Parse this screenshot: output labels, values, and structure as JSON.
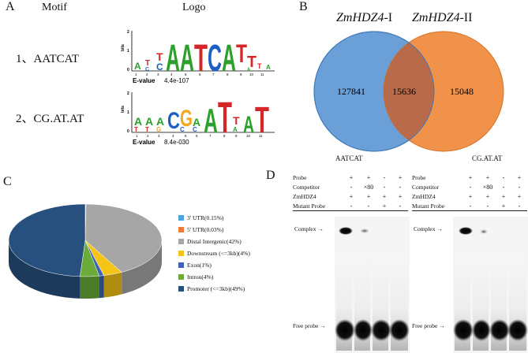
{
  "panels": {
    "a": "A",
    "b": "B",
    "c": "C",
    "d": "D"
  },
  "panel_a": {
    "header_motif": "Motif",
    "header_logo": "Logo",
    "motifs": [
      {
        "label": "1、AATCAT",
        "evalue_label": "E-value",
        "evalue": "4.4e-107",
        "positions": [
          "1",
          "2",
          "3",
          "4",
          "5",
          "6",
          "7",
          "8",
          "9",
          "10",
          "11"
        ]
      },
      {
        "label": "2、CG.AT.AT",
        "evalue_label": "E-value",
        "evalue": "8.4e-030",
        "positions": [
          "1",
          "2",
          "3",
          "4",
          "5",
          "6",
          "7",
          "8",
          "9",
          "10",
          "11"
        ]
      }
    ],
    "axis_label": "bits",
    "axis_ticks": [
      "2",
      "1",
      "0"
    ]
  },
  "panel_b": {
    "set1_gene": "ZmHDZ4",
    "set1_suffix": "-I",
    "set2_gene": "ZmHDZ4",
    "set2_suffix": "-II",
    "only_1": "127841",
    "overlap": "15636",
    "only_2": "15048",
    "colors": {
      "set1": "#6a9fd8",
      "set2": "#f0924a",
      "overlap": "#b96a4a"
    }
  },
  "chart_data": {
    "type": "pie",
    "labels": [
      "3' UTR(0.15%)",
      "5' UTR(0.03%)",
      "Distal Intergenic(42%)",
      "Downstream (<=3kb)(4%)",
      "Exon(1%)",
      "Intron(4%)",
      "Promoter (<=3kb)(49%)"
    ],
    "values": [
      0.15,
      0.03,
      42,
      4,
      1,
      4,
      49
    ],
    "colors": [
      "#4da3e0",
      "#f07a3a",
      "#a6a6a6",
      "#f5c416",
      "#3c64b0",
      "#6aab3a",
      "#27507e"
    ],
    "legend_position": "right"
  },
  "panel_d": {
    "gels": [
      {
        "title": "AATCAT",
        "rows": [
          {
            "label": "Probe",
            "marks": [
              "+",
              "+",
              "-",
              "+"
            ]
          },
          {
            "label": "Competitor",
            "marks": [
              "-",
              "×80",
              "-",
              "-"
            ]
          },
          {
            "label": "ZmHDZ4",
            "marks": [
              "+",
              "+",
              "+",
              "+"
            ]
          },
          {
            "label": "Mutant Probe",
            "marks": [
              "-",
              "-",
              "+",
              "-"
            ]
          }
        ],
        "complex_label": "Complex",
        "free_label": "Free probe"
      },
      {
        "title": "CG.AT.AT",
        "rows": [
          {
            "label": "Probe",
            "marks": [
              "+",
              "+",
              "-",
              "+"
            ]
          },
          {
            "label": "Competitor",
            "marks": [
              "-",
              "×80",
              "-",
              "-"
            ]
          },
          {
            "label": "ZmHDZ4",
            "marks": [
              "+",
              "+",
              "+",
              "+"
            ]
          },
          {
            "label": "Mutant Probe",
            "marks": [
              "-",
              "-",
              "+",
              "-"
            ]
          }
        ],
        "complex_label": "Complex",
        "free_label": "Free probe"
      }
    ]
  }
}
